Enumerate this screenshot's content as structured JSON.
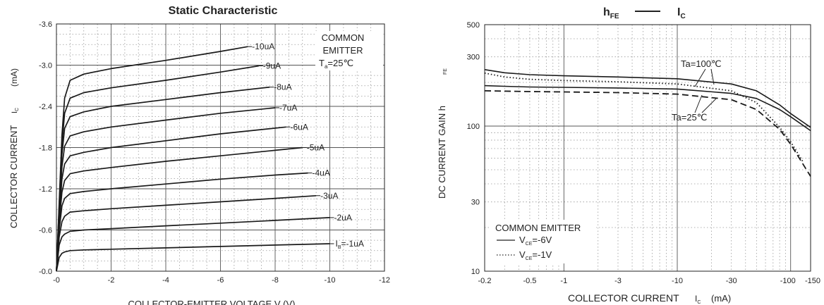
{
  "chart_data": [
    {
      "type": "line",
      "title": "Static Characteristic",
      "xlabel": "COLLECTOR-EMITTER VOLTAGE V   (V)",
      "ylabel_main": "COLLECTOR CURRENT",
      "ylabel_symbol": "I",
      "ylabel_sub": "C",
      "ylabel_unit": "(mA)",
      "xlim": [
        0,
        -12
      ],
      "ylim": [
        0,
        -3.6
      ],
      "x_ticks": [
        "-0",
        "-2",
        "-4",
        "-6",
        "-8",
        "-10",
        "-12"
      ],
      "y_ticks": [
        "-0.0",
        "-0.6",
        "-1.2",
        "-1.8",
        "-2.4",
        "-3.0",
        "-3.6"
      ],
      "grid": true,
      "annotation": {
        "line1": "COMMON",
        "line2": "EMITTER",
        "temp_prefix": "T",
        "temp_sub": "a",
        "temp_suffix": "=25℃"
      },
      "series": [
        {
          "name": "-1uA",
          "label_prefix": "I",
          "label_sub": "B",
          "label_suffix": "=-1uA",
          "x": [
            0,
            -0.1,
            -0.2,
            -0.3,
            -0.5,
            -1,
            -2,
            -4,
            -6,
            -8,
            -10
          ],
          "y": [
            0,
            -0.2,
            -0.26,
            -0.28,
            -0.3,
            -0.31,
            -0.32,
            -0.34,
            -0.36,
            -0.38,
            -0.4
          ]
        },
        {
          "name": "-2uA",
          "label": "-2uA",
          "x": [
            0,
            -0.1,
            -0.2,
            -0.3,
            -0.5,
            -1,
            -2,
            -4,
            -6,
            -8,
            -10
          ],
          "y": [
            0,
            -0.38,
            -0.5,
            -0.54,
            -0.58,
            -0.6,
            -0.62,
            -0.66,
            -0.7,
            -0.74,
            -0.78
          ]
        },
        {
          "name": "-3uA",
          "label": "-3uA",
          "x": [
            0,
            -0.1,
            -0.2,
            -0.3,
            -0.5,
            -1,
            -2,
            -4,
            -6,
            -8,
            -9.5
          ],
          "y": [
            0,
            -0.5,
            -0.72,
            -0.8,
            -0.86,
            -0.88,
            -0.91,
            -0.96,
            -1.01,
            -1.06,
            -1.1
          ]
        },
        {
          "name": "-4uA",
          "label": "-4uA",
          "x": [
            0,
            -0.1,
            -0.2,
            -0.3,
            -0.5,
            -1,
            -2,
            -4,
            -6,
            -8,
            -9.2
          ],
          "y": [
            0,
            -0.6,
            -0.95,
            -1.06,
            -1.13,
            -1.16,
            -1.2,
            -1.27,
            -1.34,
            -1.4,
            -1.43
          ]
        },
        {
          "name": "-5uA",
          "label": "-5uA",
          "x": [
            0,
            -0.1,
            -0.2,
            -0.3,
            -0.5,
            -1,
            -2,
            -4,
            -6,
            -8,
            -9.0
          ],
          "y": [
            0,
            -0.7,
            -1.15,
            -1.32,
            -1.42,
            -1.46,
            -1.51,
            -1.6,
            -1.68,
            -1.76,
            -1.8
          ]
        },
        {
          "name": "-6uA",
          "label": "-6uA",
          "x": [
            0,
            -0.1,
            -0.2,
            -0.3,
            -0.5,
            -1,
            -2,
            -4,
            -6,
            -8.4
          ],
          "y": [
            0,
            -0.78,
            -1.34,
            -1.56,
            -1.68,
            -1.73,
            -1.8,
            -1.9,
            -2.0,
            -2.1
          ]
        },
        {
          "name": "-7uA",
          "label": "-7uA",
          "x": [
            0,
            -0.1,
            -0.2,
            -0.3,
            -0.5,
            -1,
            -2,
            -4,
            -6,
            -8.0
          ],
          "y": [
            0,
            -0.85,
            -1.52,
            -1.82,
            -1.97,
            -2.03,
            -2.1,
            -2.2,
            -2.3,
            -2.38
          ]
        },
        {
          "name": "-8uA",
          "label": "-8uA",
          "x": [
            0,
            -0.1,
            -0.2,
            -0.3,
            -0.5,
            -1,
            -2,
            -4,
            -6,
            -7.8
          ],
          "y": [
            0,
            -0.9,
            -1.7,
            -2.08,
            -2.25,
            -2.32,
            -2.4,
            -2.5,
            -2.6,
            -2.68
          ]
        },
        {
          "name": "-9uA",
          "label": "-9uA",
          "x": [
            0,
            -0.1,
            -0.2,
            -0.3,
            -0.5,
            -1,
            -2,
            -4,
            -6,
            -7.4
          ],
          "y": [
            0,
            -0.95,
            -1.85,
            -2.3,
            -2.52,
            -2.6,
            -2.67,
            -2.78,
            -2.9,
            -2.99
          ]
        },
        {
          "name": "-10uA",
          "label": "-10uA",
          "x": [
            0,
            -0.1,
            -0.2,
            -0.3,
            -0.5,
            -1,
            -2,
            -4,
            -6,
            -7.0
          ],
          "y": [
            0,
            -1.0,
            -1.98,
            -2.52,
            -2.78,
            -2.87,
            -2.95,
            -3.07,
            -3.2,
            -3.27
          ]
        }
      ]
    },
    {
      "type": "line",
      "title_main": "h",
      "title_main_sub": "FE",
      "title_sep": "—",
      "title_second": "I",
      "title_second_sub": "C",
      "xlabel": "COLLECTOR CURRENT",
      "xlabel_symbol": "I",
      "xlabel_sub": "C",
      "xlabel_unit": "(mA)",
      "ylabel": "DC CURRENT GAIN h",
      "ylabel_sub": "FE",
      "x_scale": "log",
      "y_scale": "log",
      "xlim": [
        -0.2,
        -150
      ],
      "ylim": [
        10,
        500
      ],
      "x_ticks": [
        {
          "value": 0.2,
          "label": "-0.2"
        },
        {
          "value": 0.5,
          "label": "-0.5"
        },
        {
          "value": 1,
          "label": "-1"
        },
        {
          "value": 3,
          "label": "-3"
        },
        {
          "value": 10,
          "label": "-10"
        },
        {
          "value": 30,
          "label": "-30"
        },
        {
          "value": 100,
          "label": "-100"
        },
        {
          "value": 150,
          "label": "-150"
        }
      ],
      "y_ticks": [
        {
          "value": 10,
          "label": "10"
        },
        {
          "value": 30,
          "label": "30"
        },
        {
          "value": 100,
          "label": "100"
        },
        {
          "value": 300,
          "label": "300"
        },
        {
          "value": 500,
          "label": "500"
        }
      ],
      "grid": true,
      "annotations": {
        "ta100": "Ta=100℃",
        "ta25": "Ta=25℃"
      },
      "legend": {
        "title": "COMMON EMITTER",
        "items": [
          {
            "style": "solid",
            "prefix": "V",
            "sub": "CE",
            "suffix": "=-6V"
          },
          {
            "style": "dotted",
            "prefix": "V",
            "sub": "CE",
            "suffix": "=-1V"
          }
        ]
      },
      "series": [
        {
          "condition": "Ta=100℃, VCE=-6V",
          "style": "solid",
          "x": [
            -0.2,
            -0.3,
            -0.5,
            -1,
            -3,
            -10,
            -30,
            -50,
            -80,
            -100,
            -150
          ],
          "y": [
            245,
            233,
            226,
            222,
            218,
            212,
            195,
            175,
            140,
            122,
            98
          ]
        },
        {
          "condition": "Ta=100℃, VCE=-1V",
          "style": "dotted",
          "x": [
            -0.2,
            -0.3,
            -0.5,
            -1,
            -3,
            -10,
            -30,
            -50,
            -80,
            -100,
            -130
          ],
          "y": [
            232,
            218,
            210,
            206,
            202,
            195,
            175,
            145,
            98,
            78,
            56
          ]
        },
        {
          "condition": "Ta=25℃, VCE=-6V",
          "style": "solid",
          "x": [
            -0.2,
            -0.3,
            -0.5,
            -1,
            -3,
            -10,
            -30,
            -50,
            -80,
            -100,
            -150
          ],
          "y": [
            190,
            188,
            186,
            185,
            183,
            180,
            168,
            155,
            130,
            116,
            93
          ]
        },
        {
          "condition": "Ta=25℃, VCE=-1V",
          "style": "dashed",
          "x": [
            -0.2,
            -0.3,
            -0.5,
            -1,
            -3,
            -10,
            -30,
            -50,
            -80,
            -100,
            -150
          ],
          "y": [
            175,
            174,
            173,
            172,
            170,
            166,
            152,
            130,
            95,
            75,
            45
          ]
        }
      ]
    }
  ]
}
